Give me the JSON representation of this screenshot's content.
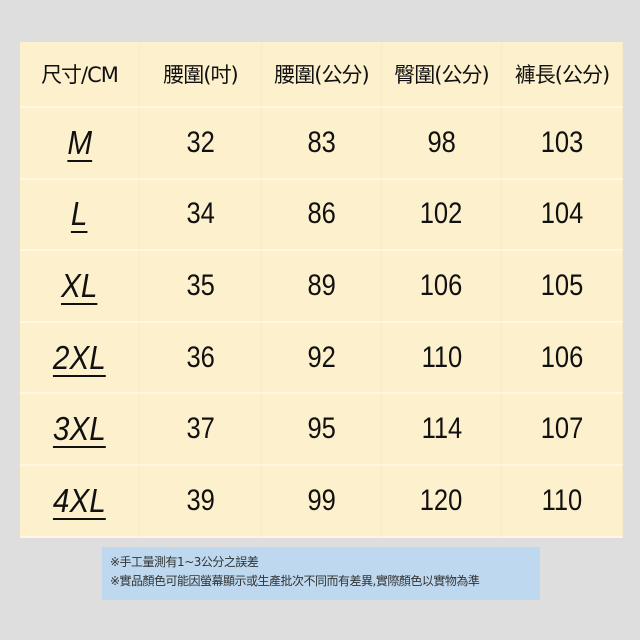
{
  "table": {
    "headers": [
      "尺寸/CM",
      "腰圍(吋)",
      "腰圍(公分)",
      "臀圍(公分)",
      "褲長(公分)"
    ],
    "rows": [
      [
        "M",
        "32",
        "83",
        "98",
        "103"
      ],
      [
        "L",
        "34",
        "86",
        "102",
        "104"
      ],
      [
        "XL",
        "35",
        "89",
        "106",
        "105"
      ],
      [
        "2XL",
        "36",
        "92",
        "110",
        "106"
      ],
      [
        "3XL",
        "37",
        "95",
        "114",
        "107"
      ],
      [
        "4XL",
        "39",
        "99",
        "120",
        "110"
      ]
    ]
  },
  "notes": [
    "※手工量測有1~3公分之誤差",
    "※實品顏色可能因螢幕顯示或生產批次不同而有差異,實際顏色以實物為準"
  ],
  "colors": {
    "table_bg": "#fdf0cc",
    "note_bg": "#bdd8ef",
    "page_bg": "#dedede"
  }
}
